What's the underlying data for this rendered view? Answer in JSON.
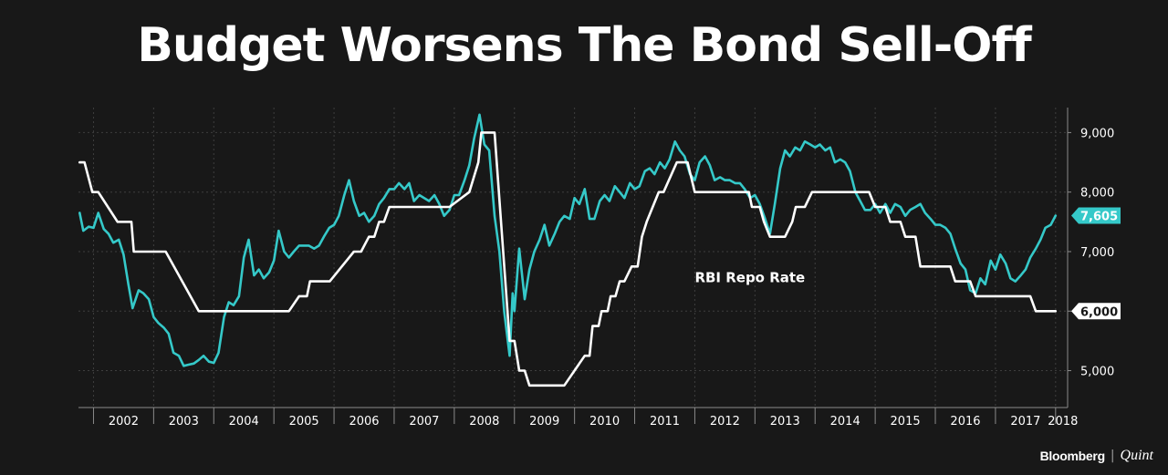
{
  "chart_data": {
    "type": "line",
    "title": "Budget Worsens The Bond Sell-Off",
    "xlabel": "",
    "ylabel": "",
    "x_range": [
      2001.75,
      2018.2
    ],
    "ylim": [
      4380,
      9420
    ],
    "y_ticks": [
      5000,
      6000,
      7000,
      8000,
      9000
    ],
    "y_tick_labels": [
      "5,000",
      "6,000",
      "7,000",
      "8,000",
      "9,000"
    ],
    "x_ticks": [
      2002,
      2003,
      2004,
      2005,
      2006,
      2007,
      2008,
      2009,
      2010,
      2011,
      2012,
      2013,
      2014,
      2015,
      2016,
      2017,
      2018
    ],
    "x_tick_labels": [
      "2002",
      "2003",
      "2004",
      "2005",
      "2006",
      "2007",
      "2008",
      "2009",
      "2010",
      "2011",
      "2012",
      "2013",
      "2014",
      "2015",
      "2016",
      "2017",
      "2018"
    ],
    "grid": true,
    "annotations": [
      {
        "text": "RBI Repo Rate",
        "x": 2012.0,
        "y": 6490,
        "series": "RBI Repo Rate"
      }
    ],
    "end_labels": [
      {
        "text": "7,605",
        "value": 7605,
        "series": "yield"
      },
      {
        "text": "6,000",
        "value": 6000,
        "series": "RBI Repo Rate"
      }
    ],
    "series": [
      {
        "name": "",
        "color": "#35c9c9",
        "points": [
          [
            2001.77,
            7650
          ],
          [
            2001.83,
            7350
          ],
          [
            2001.92,
            7420
          ],
          [
            2002.0,
            7400
          ],
          [
            2002.08,
            7650
          ],
          [
            2002.17,
            7380
          ],
          [
            2002.25,
            7300
          ],
          [
            2002.33,
            7150
          ],
          [
            2002.42,
            7200
          ],
          [
            2002.5,
            6950
          ],
          [
            2002.58,
            6450
          ],
          [
            2002.65,
            6050
          ],
          [
            2002.75,
            6350
          ],
          [
            2002.83,
            6300
          ],
          [
            2002.92,
            6200
          ],
          [
            2003.0,
            5900
          ],
          [
            2003.08,
            5800
          ],
          [
            2003.17,
            5720
          ],
          [
            2003.25,
            5620
          ],
          [
            2003.33,
            5300
          ],
          [
            2003.42,
            5250
          ],
          [
            2003.5,
            5080
          ],
          [
            2003.58,
            5100
          ],
          [
            2003.67,
            5120
          ],
          [
            2003.75,
            5180
          ],
          [
            2003.83,
            5250
          ],
          [
            2003.92,
            5150
          ],
          [
            2004.0,
            5130
          ],
          [
            2004.08,
            5300
          ],
          [
            2004.17,
            5900
          ],
          [
            2004.25,
            6150
          ],
          [
            2004.33,
            6100
          ],
          [
            2004.42,
            6250
          ],
          [
            2004.5,
            6900
          ],
          [
            2004.58,
            7200
          ],
          [
            2004.67,
            6600
          ],
          [
            2004.75,
            6700
          ],
          [
            2004.83,
            6550
          ],
          [
            2004.92,
            6650
          ],
          [
            2005.0,
            6850
          ],
          [
            2005.08,
            7350
          ],
          [
            2005.17,
            7000
          ],
          [
            2005.25,
            6900
          ],
          [
            2005.33,
            7000
          ],
          [
            2005.42,
            7100
          ],
          [
            2005.5,
            7100
          ],
          [
            2005.58,
            7100
          ],
          [
            2005.67,
            7050
          ],
          [
            2005.75,
            7100
          ],
          [
            2005.83,
            7250
          ],
          [
            2005.92,
            7400
          ],
          [
            2006.0,
            7450
          ],
          [
            2006.08,
            7600
          ],
          [
            2006.17,
            7950
          ],
          [
            2006.25,
            8200
          ],
          [
            2006.33,
            7850
          ],
          [
            2006.42,
            7600
          ],
          [
            2006.5,
            7650
          ],
          [
            2006.58,
            7500
          ],
          [
            2006.67,
            7600
          ],
          [
            2006.75,
            7800
          ],
          [
            2006.83,
            7900
          ],
          [
            2006.92,
            8050
          ],
          [
            2007.0,
            8050
          ],
          [
            2007.08,
            8150
          ],
          [
            2007.17,
            8050
          ],
          [
            2007.25,
            8150
          ],
          [
            2007.33,
            7850
          ],
          [
            2007.42,
            7950
          ],
          [
            2007.5,
            7900
          ],
          [
            2007.58,
            7850
          ],
          [
            2007.67,
            7950
          ],
          [
            2007.75,
            7800
          ],
          [
            2007.83,
            7600
          ],
          [
            2007.92,
            7700
          ],
          [
            2008.0,
            7950
          ],
          [
            2008.08,
            7950
          ],
          [
            2008.17,
            8200
          ],
          [
            2008.25,
            8450
          ],
          [
            2008.33,
            8900
          ],
          [
            2008.42,
            9300
          ],
          [
            2008.5,
            8800
          ],
          [
            2008.58,
            8700
          ],
          [
            2008.67,
            7600
          ],
          [
            2008.75,
            7000
          ],
          [
            2008.83,
            6000
          ],
          [
            2008.92,
            5250
          ],
          [
            2008.97,
            6300
          ],
          [
            2009.0,
            6000
          ],
          [
            2009.08,
            7050
          ],
          [
            2009.17,
            6200
          ],
          [
            2009.25,
            6700
          ],
          [
            2009.33,
            7000
          ],
          [
            2009.42,
            7200
          ],
          [
            2009.5,
            7450
          ],
          [
            2009.58,
            7100
          ],
          [
            2009.67,
            7300
          ],
          [
            2009.75,
            7500
          ],
          [
            2009.83,
            7600
          ],
          [
            2009.92,
            7550
          ],
          [
            2010.0,
            7900
          ],
          [
            2010.08,
            7800
          ],
          [
            2010.17,
            8050
          ],
          [
            2010.25,
            7550
          ],
          [
            2010.33,
            7550
          ],
          [
            2010.42,
            7850
          ],
          [
            2010.5,
            7950
          ],
          [
            2010.58,
            7850
          ],
          [
            2010.67,
            8100
          ],
          [
            2010.75,
            8000
          ],
          [
            2010.83,
            7900
          ],
          [
            2010.92,
            8150
          ],
          [
            2011.0,
            8050
          ],
          [
            2011.08,
            8100
          ],
          [
            2011.17,
            8350
          ],
          [
            2011.25,
            8400
          ],
          [
            2011.33,
            8300
          ],
          [
            2011.42,
            8500
          ],
          [
            2011.5,
            8400
          ],
          [
            2011.58,
            8550
          ],
          [
            2011.67,
            8850
          ],
          [
            2011.75,
            8700
          ],
          [
            2011.83,
            8600
          ],
          [
            2011.92,
            8300
          ],
          [
            2012.0,
            8200
          ],
          [
            2012.08,
            8500
          ],
          [
            2012.17,
            8600
          ],
          [
            2012.25,
            8450
          ],
          [
            2012.33,
            8200
          ],
          [
            2012.42,
            8250
          ],
          [
            2012.5,
            8200
          ],
          [
            2012.58,
            8200
          ],
          [
            2012.67,
            8150
          ],
          [
            2012.75,
            8150
          ],
          [
            2012.83,
            8050
          ],
          [
            2012.92,
            7900
          ],
          [
            2013.0,
            7950
          ],
          [
            2013.08,
            7800
          ],
          [
            2013.17,
            7550
          ],
          [
            2013.25,
            7300
          ],
          [
            2013.33,
            7800
          ],
          [
            2013.42,
            8400
          ],
          [
            2013.5,
            8700
          ],
          [
            2013.58,
            8600
          ],
          [
            2013.67,
            8750
          ],
          [
            2013.75,
            8700
          ],
          [
            2013.83,
            8850
          ],
          [
            2013.92,
            8800
          ],
          [
            2014.0,
            8750
          ],
          [
            2014.08,
            8800
          ],
          [
            2014.17,
            8700
          ],
          [
            2014.25,
            8750
          ],
          [
            2014.33,
            8500
          ],
          [
            2014.42,
            8550
          ],
          [
            2014.5,
            8500
          ],
          [
            2014.58,
            8350
          ],
          [
            2014.67,
            8000
          ],
          [
            2014.75,
            7850
          ],
          [
            2014.83,
            7700
          ],
          [
            2014.92,
            7700
          ],
          [
            2015.0,
            7800
          ],
          [
            2015.08,
            7650
          ],
          [
            2015.17,
            7800
          ],
          [
            2015.25,
            7650
          ],
          [
            2015.33,
            7800
          ],
          [
            2015.42,
            7750
          ],
          [
            2015.5,
            7600
          ],
          [
            2015.58,
            7700
          ],
          [
            2015.67,
            7750
          ],
          [
            2015.75,
            7800
          ],
          [
            2015.83,
            7650
          ],
          [
            2015.92,
            7550
          ],
          [
            2016.0,
            7450
          ],
          [
            2016.08,
            7450
          ],
          [
            2016.17,
            7400
          ],
          [
            2016.25,
            7300
          ],
          [
            2016.33,
            7050
          ],
          [
            2016.42,
            6800
          ],
          [
            2016.5,
            6700
          ],
          [
            2016.58,
            6350
          ],
          [
            2016.67,
            6300
          ],
          [
            2016.75,
            6550
          ],
          [
            2016.83,
            6450
          ],
          [
            2016.92,
            6850
          ],
          [
            2017.0,
            6700
          ],
          [
            2017.08,
            6950
          ],
          [
            2017.17,
            6800
          ],
          [
            2017.25,
            6550
          ],
          [
            2017.33,
            6500
          ],
          [
            2017.42,
            6600
          ],
          [
            2017.5,
            6700
          ],
          [
            2017.58,
            6900
          ],
          [
            2017.67,
            7050
          ],
          [
            2017.75,
            7200
          ],
          [
            2017.83,
            7400
          ],
          [
            2017.92,
            7450
          ],
          [
            2018.0,
            7605
          ]
        ]
      },
      {
        "name": "RBI Repo Rate",
        "color": "#ffffff",
        "points": [
          [
            2001.77,
            8500
          ],
          [
            2001.85,
            8500
          ],
          [
            2001.98,
            8000
          ],
          [
            2002.08,
            8000
          ],
          [
            2002.4,
            7500
          ],
          [
            2002.63,
            7500
          ],
          [
            2002.67,
            7000
          ],
          [
            2003.2,
            7000
          ],
          [
            2003.75,
            6000
          ],
          [
            2005.25,
            6000
          ],
          [
            2005.42,
            6250
          ],
          [
            2005.55,
            6250
          ],
          [
            2005.6,
            6500
          ],
          [
            2005.93,
            6500
          ],
          [
            2006.33,
            7000
          ],
          [
            2006.45,
            7000
          ],
          [
            2006.58,
            7250
          ],
          [
            2006.67,
            7250
          ],
          [
            2006.75,
            7500
          ],
          [
            2006.83,
            7500
          ],
          [
            2006.92,
            7750
          ],
          [
            2007.92,
            7750
          ],
          [
            2008.25,
            8000
          ],
          [
            2008.4,
            8500
          ],
          [
            2008.45,
            9000
          ],
          [
            2008.67,
            9000
          ],
          [
            2008.92,
            5500
          ],
          [
            2009.0,
            5500
          ],
          [
            2009.08,
            5000
          ],
          [
            2009.17,
            5000
          ],
          [
            2009.25,
            4750
          ],
          [
            2009.83,
            4750
          ],
          [
            2010.17,
            5250
          ],
          [
            2010.25,
            5250
          ],
          [
            2010.3,
            5750
          ],
          [
            2010.4,
            5750
          ],
          [
            2010.45,
            6000
          ],
          [
            2010.55,
            6000
          ],
          [
            2010.6,
            6250
          ],
          [
            2010.68,
            6250
          ],
          [
            2010.75,
            6500
          ],
          [
            2010.83,
            6500
          ],
          [
            2010.95,
            6750
          ],
          [
            2011.05,
            6750
          ],
          [
            2011.12,
            7250
          ],
          [
            2011.2,
            7500
          ],
          [
            2011.4,
            8000
          ],
          [
            2011.48,
            8000
          ],
          [
            2011.7,
            8500
          ],
          [
            2011.88,
            8500
          ],
          [
            2012.0,
            8000
          ],
          [
            2012.9,
            8000
          ],
          [
            2012.95,
            7750
          ],
          [
            2013.08,
            7750
          ],
          [
            2013.15,
            7500
          ],
          [
            2013.25,
            7250
          ],
          [
            2013.5,
            7250
          ],
          [
            2013.62,
            7500
          ],
          [
            2013.68,
            7750
          ],
          [
            2013.83,
            7750
          ],
          [
            2013.95,
            8000
          ],
          [
            2014.9,
            8000
          ],
          [
            2015.0,
            7750
          ],
          [
            2015.17,
            7750
          ],
          [
            2015.25,
            7500
          ],
          [
            2015.42,
            7500
          ],
          [
            2015.5,
            7250
          ],
          [
            2015.67,
            7250
          ],
          [
            2015.75,
            6750
          ],
          [
            2016.25,
            6750
          ],
          [
            2016.33,
            6500
          ],
          [
            2016.58,
            6500
          ],
          [
            2016.67,
            6250
          ],
          [
            2017.58,
            6250
          ],
          [
            2017.67,
            6000
          ],
          [
            2018.0,
            6000
          ]
        ]
      }
    ]
  },
  "brand": {
    "name1": "Bloomberg",
    "sep": "|",
    "name2": "Quint"
  }
}
